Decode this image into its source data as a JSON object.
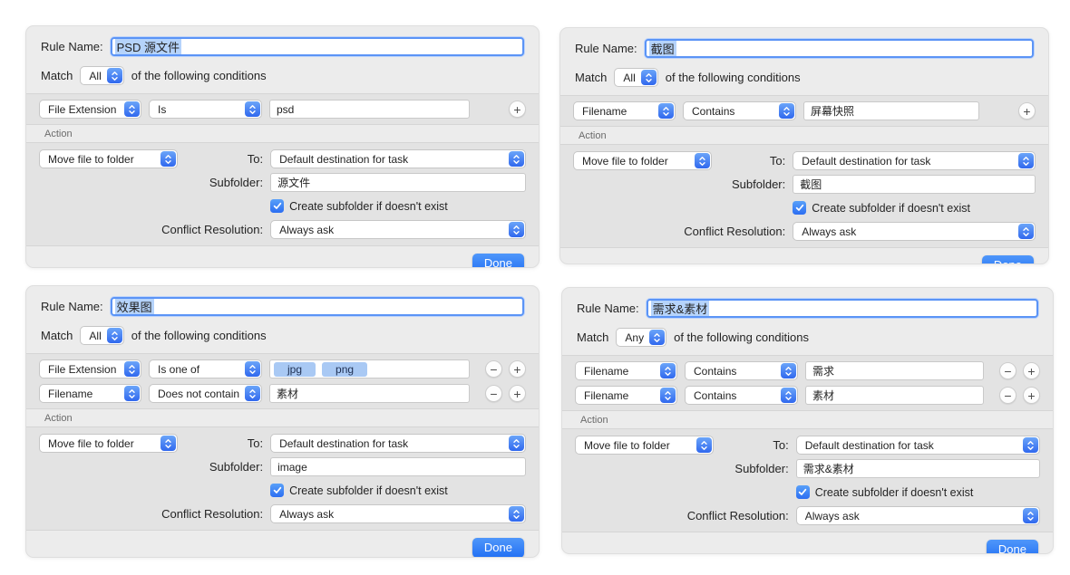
{
  "colors": {
    "panel_gray": "#ececec",
    "band_gray": "#e3e3e3",
    "accent_blue": "#3b7df5",
    "done_top": "#4f97fa",
    "done_bottom": "#2270f4",
    "token_blue": "#a9c9f4",
    "selection_blue": "#b5d3fb"
  },
  "icons": {
    "stepper": "up-down-chevron-icon",
    "checkbox": "checkmark-icon",
    "add": "+",
    "remove": "−"
  },
  "panels": [
    {
      "rule_name_label": "Rule Name:",
      "rule_name_value": "PSD 源文件",
      "match_label": "Match",
      "match_value": "All",
      "match_suffix": "of the following conditions",
      "conditions": [
        {
          "attribute": "File Extension",
          "operator": "Is",
          "value": "psd",
          "removable": false
        }
      ],
      "action": {
        "section_label": "Action",
        "action_type": "Move file to folder",
        "to_label": "To:",
        "to_value": "Default destination for task",
        "subfolder_label": "Subfolder:",
        "subfolder_value": "源文件",
        "checkbox_label": "Create subfolder if doesn't exist",
        "checkbox_checked": true,
        "conflict_label": "Conflict Resolution:",
        "conflict_value": "Always ask"
      },
      "done_label": "Done"
    },
    {
      "rule_name_label": "Rule Name:",
      "rule_name_value": "截图",
      "match_label": "Match",
      "match_value": "All",
      "match_suffix": "of the following conditions",
      "conditions": [
        {
          "attribute": "Filename",
          "operator": "Contains",
          "value": "屏幕快照",
          "removable": false
        }
      ],
      "action": {
        "section_label": "Action",
        "action_type": "Move file to folder",
        "to_label": "To:",
        "to_value": "Default destination for task",
        "subfolder_label": "Subfolder:",
        "subfolder_value": "截图",
        "checkbox_label": "Create subfolder if doesn't exist",
        "checkbox_checked": true,
        "conflict_label": "Conflict Resolution:",
        "conflict_value": "Always ask"
      },
      "done_label": "Done"
    },
    {
      "rule_name_label": "Rule Name:",
      "rule_name_value": "效果图",
      "match_label": "Match",
      "match_value": "All",
      "match_suffix": "of the following conditions",
      "conditions": [
        {
          "attribute": "File Extension",
          "operator": "Is one of",
          "tokens": [
            "jpg",
            "png"
          ],
          "removable": true
        },
        {
          "attribute": "Filename",
          "operator": "Does not contain",
          "value": "素材",
          "removable": true
        }
      ],
      "action": {
        "section_label": "Action",
        "action_type": "Move file to folder",
        "to_label": "To:",
        "to_value": "Default destination for task",
        "subfolder_label": "Subfolder:",
        "subfolder_value": "image",
        "checkbox_label": "Create subfolder if doesn't exist",
        "checkbox_checked": true,
        "conflict_label": "Conflict Resolution:",
        "conflict_value": "Always ask"
      },
      "done_label": "Done"
    },
    {
      "rule_name_label": "Rule Name:",
      "rule_name_value": "需求&素材",
      "match_label": "Match",
      "match_value": "Any",
      "match_suffix": "of the following conditions",
      "conditions": [
        {
          "attribute": "Filename",
          "operator": "Contains",
          "value": "需求",
          "removable": true
        },
        {
          "attribute": "Filename",
          "operator": "Contains",
          "value": "素材",
          "removable": true
        }
      ],
      "action": {
        "section_label": "Action",
        "action_type": "Move file to folder",
        "to_label": "To:",
        "to_value": "Default destination for task",
        "subfolder_label": "Subfolder:",
        "subfolder_value": "需求&素材",
        "checkbox_label": "Create subfolder if doesn't exist",
        "checkbox_checked": true,
        "conflict_label": "Conflict Resolution:",
        "conflict_value": "Always ask"
      },
      "done_label": "Done"
    }
  ]
}
